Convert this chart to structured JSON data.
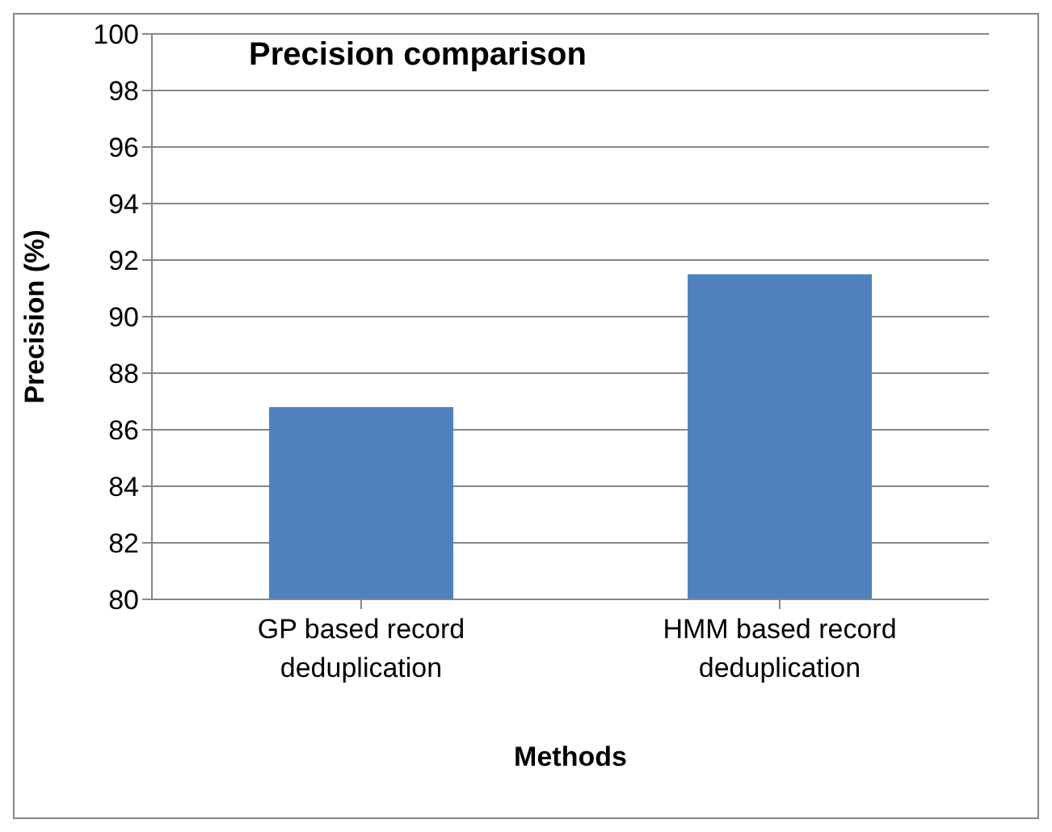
{
  "chart_data": {
    "type": "bar",
    "title": "Precision comparison",
    "xlabel": "Methods",
    "ylabel": "Precision (%)",
    "categories": [
      "GP based record deduplication",
      "HMM based record deduplication"
    ],
    "values": [
      86.8,
      91.5
    ],
    "color": "#4f81bd",
    "ylim": [
      80,
      100
    ],
    "yticks": [
      80,
      82,
      84,
      86,
      88,
      90,
      92,
      94,
      96,
      98,
      100
    ],
    "grid": "y"
  }
}
